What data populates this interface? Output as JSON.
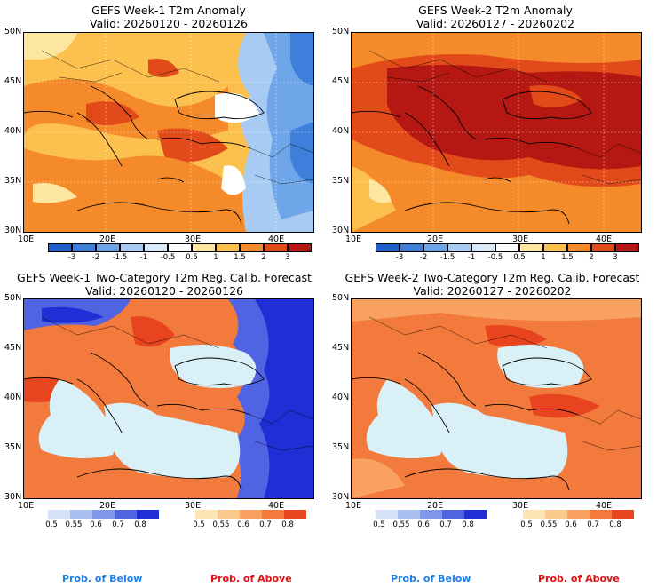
{
  "panels": [
    {
      "title": "GEFS Week-1 T2m Anomaly",
      "valid": "Valid: 20260120 - 20260126"
    },
    {
      "title": "GEFS Week-2 T2m Anomaly",
      "valid": "Valid: 20260127 - 20260202"
    },
    {
      "title": "GEFS Week-1 Two-Category T2m Reg. Calib. Forecast",
      "valid": "Valid: 20260120 - 20260126"
    },
    {
      "title": "GEFS Week-2 Two-Category T2m Reg. Calib. Forecast",
      "valid": "Valid: 20260127 - 20260202"
    }
  ],
  "lat_labels": [
    "50N",
    "45N",
    "40N",
    "35N",
    "30N"
  ],
  "lon_labels": [
    "10E",
    "20E",
    "30E",
    "40E"
  ],
  "anomaly_colorbar": {
    "labels": [
      "-3",
      "-2",
      "-1.5",
      "-1",
      "-0.5",
      "0.5",
      "1",
      "1.5",
      "2",
      "3"
    ],
    "colors": [
      "#1f5fc9",
      "#3f7fdc",
      "#6fa6ea",
      "#a7cbf2",
      "#d8e9f8",
      "#ffffff",
      "#fde6a0",
      "#fbc04e",
      "#f48a2a",
      "#e24a1a",
      "#b51812"
    ]
  },
  "below_colorbar": {
    "labels": [
      "0.5",
      "0.55",
      "0.6",
      "0.7",
      "0.8"
    ],
    "colors": [
      "#d6e2f7",
      "#a9bff0",
      "#7f98ea",
      "#4f63e3",
      "#1f2fd6"
    ],
    "caption": "Prob. of Below",
    "caption_color": "#1f7fe0"
  },
  "above_colorbar": {
    "labels": [
      "0.5",
      "0.55",
      "0.6",
      "0.7",
      "0.8"
    ],
    "colors": [
      "#fde6b4",
      "#fbc98c",
      "#f8a160",
      "#f27a3c",
      "#e8441f"
    ],
    "caption": "Prob. of Above",
    "caption_color": "#e01010"
  }
}
